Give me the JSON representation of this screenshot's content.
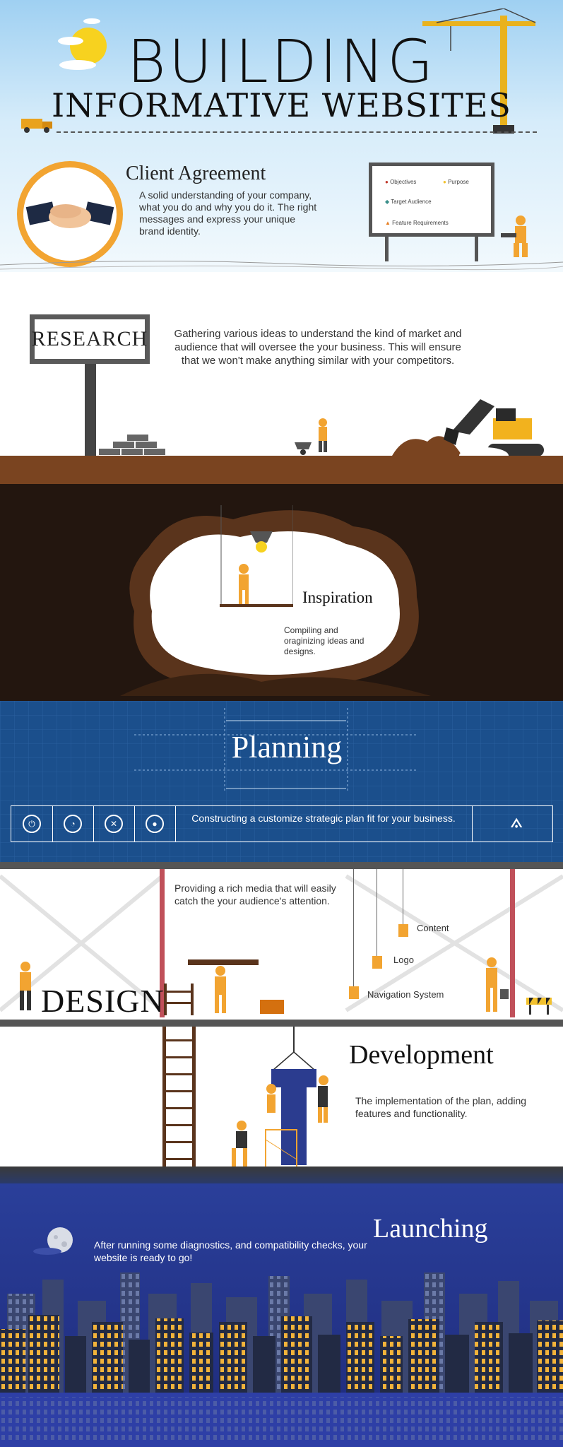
{
  "header": {
    "title_line1": "BUILDING",
    "title_line2": "INFORMATIVE WEBSITES"
  },
  "client_agreement": {
    "title": "Client Agreement",
    "description": "A solid understanding of your company, what you do and why you do it. The right messages and express your unique brand identity.",
    "board_items": [
      "Objectives",
      "Purpose",
      "Target Audience",
      "Feature Requirements"
    ]
  },
  "research": {
    "sign": "RESEARCH",
    "description": "Gathering various ideas to understand the kind of market and audience that will oversee the your business. This will  ensure that we won't make anything similar with your competitors."
  },
  "inspiration": {
    "title": "Inspiration",
    "description": "Compiling and oraginizing ideas and designs."
  },
  "planning": {
    "title": "Planning",
    "description": "Constructing a customize strategic plan fit for your business.",
    "icons": [
      "plug-icon",
      "gauge-icon",
      "tools-icon",
      "bulb-icon",
      "compass-icon"
    ]
  },
  "design": {
    "title": "DESIGN",
    "description": "Providing a rich media that will easily catch the your audience's attention.",
    "items": [
      "Content",
      "Logo",
      "Navigation System"
    ]
  },
  "development": {
    "title": "Development",
    "description": "The implementation of the plan, adding features and functionality."
  },
  "launching": {
    "title": "Launching",
    "description": "After running some diagnostics, and compatibility checks, your website is ready to go!"
  },
  "colors": {
    "sky": "#9fd0f2",
    "accent_orange": "#f2a431",
    "dirt": "#7a4420",
    "cave": "#23160f",
    "planning_blue": "#1b4f8c",
    "night_blue": "#1e2a7a"
  }
}
